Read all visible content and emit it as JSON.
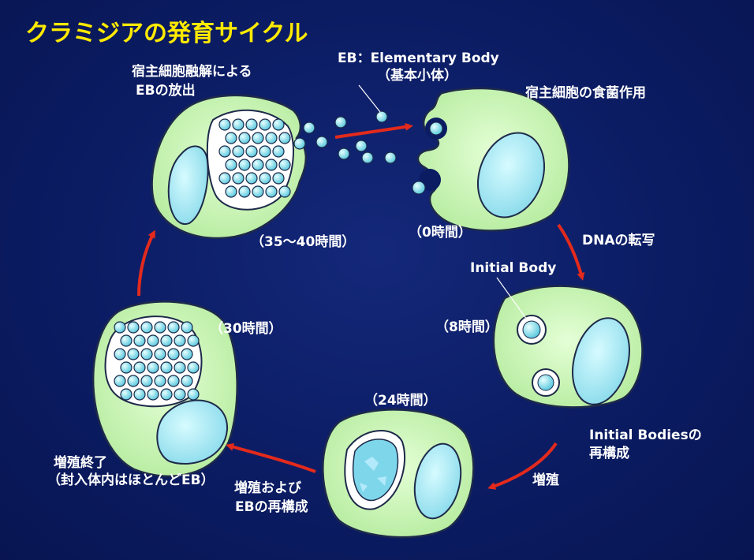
{
  "title": "クラミジアの発育サイクル",
  "labels": {
    "eb_line1": "EB：Elementary Body",
    "eb_line2": "（基本小体）",
    "release_line1": "宿主細胞融解による",
    "release_line2": "EBの放出",
    "phagocytosis": "宿主細胞の食菌作用",
    "time_35_40": "（35～40時間）",
    "time_0": "（0時間）",
    "dna_transcription": "DNAの転写",
    "initial_body": "Initial Body",
    "time_8": "（8時間）",
    "time_30": "（30時間）",
    "reorg_line1": "Initial Bodiesの",
    "reorg_line2": "再構成",
    "proliferation": "増殖",
    "time_24": "（24時間）",
    "end_line1": "増殖終了",
    "end_line2": "（封入体内はほとんどEB）",
    "prolif_eb_line1": "増殖および",
    "prolif_eb_line2": "EBの再構成"
  },
  "colors": {
    "background": "#0b1c63",
    "title": "#ffea00",
    "cell_fill": "#ccf5b8",
    "cell_stroke": "#1e2a4a",
    "nucleus": "#9fe6f2",
    "eb_particle": "#7fdcec",
    "arrow": "#e32a1c",
    "text": "#ffffff"
  }
}
